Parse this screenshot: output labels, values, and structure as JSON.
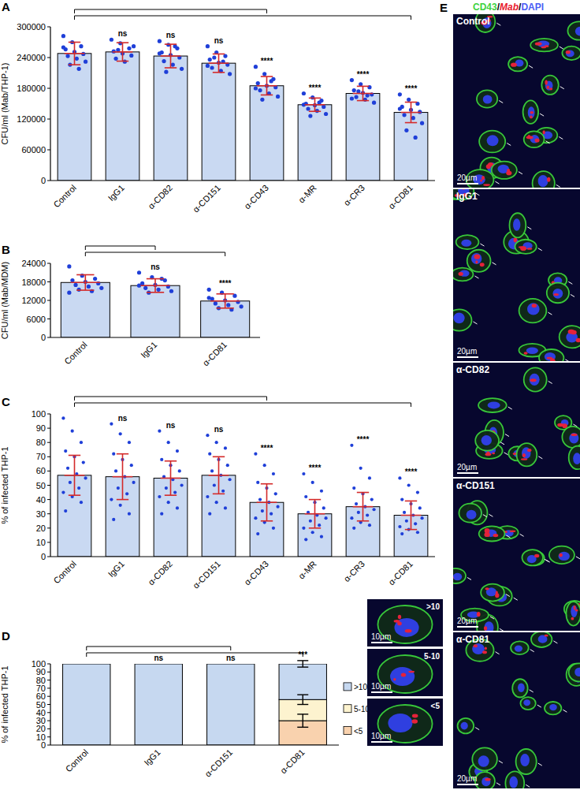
{
  "chart_data": [
    {
      "type": "bar",
      "panel_label": "A",
      "y_label": "CFU/ml (Mab/THP-1)",
      "categories": [
        "Control",
        "IgG1",
        "α-CD82",
        "α-CD151",
        "α-CD43",
        "α-MR",
        "α-CR3",
        "α-CD81"
      ],
      "values": [
        248000,
        251000,
        243000,
        229000,
        185000,
        148000,
        170000,
        133000
      ],
      "errors": [
        22000,
        18000,
        23000,
        18000,
        18000,
        13000,
        14000,
        20000
      ],
      "points": [
        [
          282000,
          270000,
          262000,
          256000,
          251000,
          247000,
          243000,
          238000,
          232000,
          226000,
          218000,
          260000
        ],
        [
          275000,
          268000,
          258000,
          252000,
          248000,
          244000,
          238000,
          232000,
          262000,
          255000
        ],
        [
          272000,
          265000,
          258000,
          250000,
          245000,
          240000,
          233000,
          226000,
          218000,
          212000,
          262000,
          248000
        ],
        [
          262000,
          250000,
          243000,
          236000,
          230000,
          226000,
          220000,
          214000,
          208000,
          240000,
          232000,
          224000
        ],
        [
          222000,
          208000,
          198000,
          190000,
          185000,
          182000,
          176000,
          170000,
          164000,
          158000,
          194000,
          180000
        ],
        [
          170000,
          162000,
          156000,
          150000,
          147000,
          144000,
          140000,
          136000,
          130000,
          126000,
          152000,
          148000
        ],
        [
          196000,
          188000,
          182000,
          176000,
          171000,
          168000,
          163000,
          158000,
          152000,
          174000,
          166000,
          160000
        ],
        [
          168000,
          158000,
          150000,
          144000,
          138000,
          134000,
          128000,
          122000,
          112000,
          98000,
          84000,
          140000
        ]
      ],
      "annotations": [
        null,
        "ns",
        "ns",
        "ns",
        "****",
        "****",
        "****",
        "****"
      ],
      "color": "#c9d9f2",
      "ylim": [
        0,
        300000
      ],
      "yticks": [
        0,
        60000,
        120000,
        180000,
        240000,
        300000
      ]
    },
    {
      "type": "bar",
      "panel_label": "B",
      "y_label": "CFU/ml (Mab/MDM)",
      "categories": [
        "Control",
        "IgG1",
        "α-CD81"
      ],
      "values": [
        17800,
        16800,
        11800
      ],
      "errors": [
        2500,
        2200,
        2300
      ],
      "points": [
        [
          23000,
          20000,
          19000,
          18500,
          18000,
          17500,
          17000,
          16500,
          16000,
          15500,
          15000,
          14500
        ],
        [
          21000,
          19500,
          18500,
          17500,
          17000,
          16500,
          16000,
          15500,
          15000,
          14500,
          19000,
          16800
        ],
        [
          15500,
          14500,
          13500,
          12500,
          12000,
          11500,
          11000,
          10500,
          10000,
          9500,
          9000,
          12800
        ]
      ],
      "annotations": [
        null,
        "ns",
        "****"
      ],
      "color": "#c9d9f2",
      "ylim": [
        0,
        24000
      ],
      "yticks": [
        0,
        6000,
        12000,
        18000,
        24000
      ]
    },
    {
      "type": "bar",
      "panel_label": "C",
      "y_label": "% of infected THP-1",
      "categories": [
        "Control",
        "IgG1",
        "α-CD82",
        "α-CD151",
        "α-CD43",
        "α-MR",
        "α-CR3",
        "α-CD81"
      ],
      "values": [
        57,
        56,
        55,
        57,
        38,
        30,
        35,
        29
      ],
      "errors": [
        14,
        16,
        12,
        13,
        13,
        10,
        10,
        10
      ],
      "points": [
        [
          97,
          88,
          80,
          74,
          70,
          66,
          62,
          58,
          55,
          52,
          48,
          45,
          42,
          38,
          32
        ],
        [
          93,
          86,
          80,
          72,
          68,
          64,
          60,
          56,
          52,
          48,
          44,
          40,
          36,
          30,
          26
        ],
        [
          88,
          80,
          74,
          68,
          64,
          60,
          56,
          54,
          50,
          48,
          45,
          42,
          38,
          34,
          30
        ],
        [
          85,
          80,
          76,
          72,
          68,
          64,
          60,
          57,
          54,
          50,
          46,
          42,
          38,
          34,
          30
        ],
        [
          72,
          64,
          58,
          52,
          48,
          44,
          40,
          38,
          35,
          32,
          30,
          27,
          24,
          20,
          16
        ],
        [
          58,
          52,
          46,
          42,
          38,
          34,
          31,
          29,
          27,
          25,
          22,
          20,
          17,
          14,
          12
        ],
        [
          78,
          62,
          55,
          48,
          44,
          40,
          37,
          35,
          33,
          31,
          29,
          27,
          24,
          22,
          20
        ],
        [
          55,
          50,
          45,
          40,
          37,
          34,
          31,
          29,
          27,
          25,
          23,
          21,
          19,
          17,
          16
        ]
      ],
      "annotations": [
        null,
        "ns",
        "ns",
        "ns",
        "****",
        "****",
        "****",
        "****"
      ],
      "color": "#c9d9f2",
      "ylim": [
        0,
        100
      ],
      "yticks": [
        0,
        10,
        20,
        30,
        40,
        50,
        60,
        70,
        80,
        90,
        100
      ]
    },
    {
      "type": "bar",
      "stacked": true,
      "panel_label": "D",
      "y_label": "% of infected THP-1",
      "categories": [
        "Control",
        "IgG1",
        "α-CD151",
        "α-CD81"
      ],
      "series": [
        {
          "name": "<5",
          "color": "#f9d2ae",
          "values": [
            0,
            0,
            0,
            30
          ],
          "errors": [
            null,
            null,
            null,
            8
          ]
        },
        {
          "name": "5-10",
          "color": "#fdf3cf",
          "values": [
            0,
            0,
            0,
            26
          ],
          "errors": [
            null,
            null,
            null,
            6
          ]
        },
        {
          "name": ">10",
          "color": "#c6d8f0",
          "values": [
            100,
            100,
            100,
            44
          ],
          "errors": [
            null,
            null,
            null,
            4
          ]
        }
      ],
      "annotations": [
        null,
        "ns",
        "ns",
        "***"
      ],
      "legend": "right",
      "ylim": [
        0,
        100
      ],
      "yticks": [
        0,
        10,
        20,
        30,
        40,
        50,
        60,
        70,
        80,
        90,
        100
      ]
    }
  ],
  "insets_d": [
    {
      "label": ">10",
      "scale": "10µm"
    },
    {
      "label": "5-10",
      "scale": "10µm"
    },
    {
      "label": "<5",
      "scale": "10µm"
    }
  ],
  "panel_e": {
    "letter": "E",
    "stain_label": {
      "parts": [
        "CD43",
        "Mab",
        "DAPI"
      ],
      "separator": "/",
      "colors": [
        "#3fd23f",
        "#e8202e",
        "#4a5cf5"
      ]
    },
    "panels": [
      {
        "label": "Control",
        "scale": "20µm"
      },
      {
        "label": "IgG1",
        "scale": "20µm"
      },
      {
        "label": "α-CD82",
        "scale": "20µm"
      },
      {
        "label": "α-CD151",
        "scale": "20µm"
      },
      {
        "label": "α-CD81",
        "scale": "20µm"
      }
    ]
  }
}
